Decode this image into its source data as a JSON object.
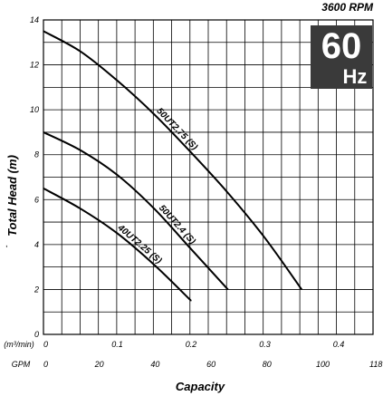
{
  "header": {
    "speed": "3600 RPM",
    "frequency_value": "60",
    "frequency_unit": "Hz"
  },
  "chart_data": {
    "type": "line",
    "title": "",
    "xlabel": "Capacity",
    "ylabel": "Total Head (m)",
    "ylabel_prefix": "-",
    "x_unit_primary": "(m³/min)",
    "x_unit_secondary": "GPM",
    "xlim": [
      0,
      0.4467
    ],
    "ylim": [
      0,
      14
    ],
    "x_ticks": [
      0,
      0.1,
      0.2,
      0.3,
      0.4
    ],
    "x_ticks_gpm": [
      "0",
      "20",
      "40",
      "60",
      "80",
      "100",
      "118"
    ],
    "y_ticks": [
      0,
      2,
      4,
      6,
      8,
      10,
      12,
      14
    ],
    "grid": true,
    "legend": "inline labels on curves",
    "series": [
      {
        "name": "50UT2.75 (S)",
        "x": [
          0,
          0.05,
          0.1,
          0.15,
          0.2,
          0.25,
          0.3,
          0.35
        ],
        "y": [
          13.5,
          12.6,
          11.3,
          9.8,
          8.1,
          6.3,
          4.3,
          2.0
        ]
      },
      {
        "name": "50UT2.4 (S)",
        "x": [
          0,
          0.05,
          0.1,
          0.15,
          0.2,
          0.25
        ],
        "y": [
          9.0,
          8.2,
          7.1,
          5.6,
          3.8,
          2.0
        ]
      },
      {
        "name": "40UT2.25 (S)",
        "x": [
          0,
          0.05,
          0.1,
          0.15,
          0.2
        ],
        "y": [
          6.5,
          5.6,
          4.5,
          3.1,
          1.5
        ]
      }
    ]
  }
}
